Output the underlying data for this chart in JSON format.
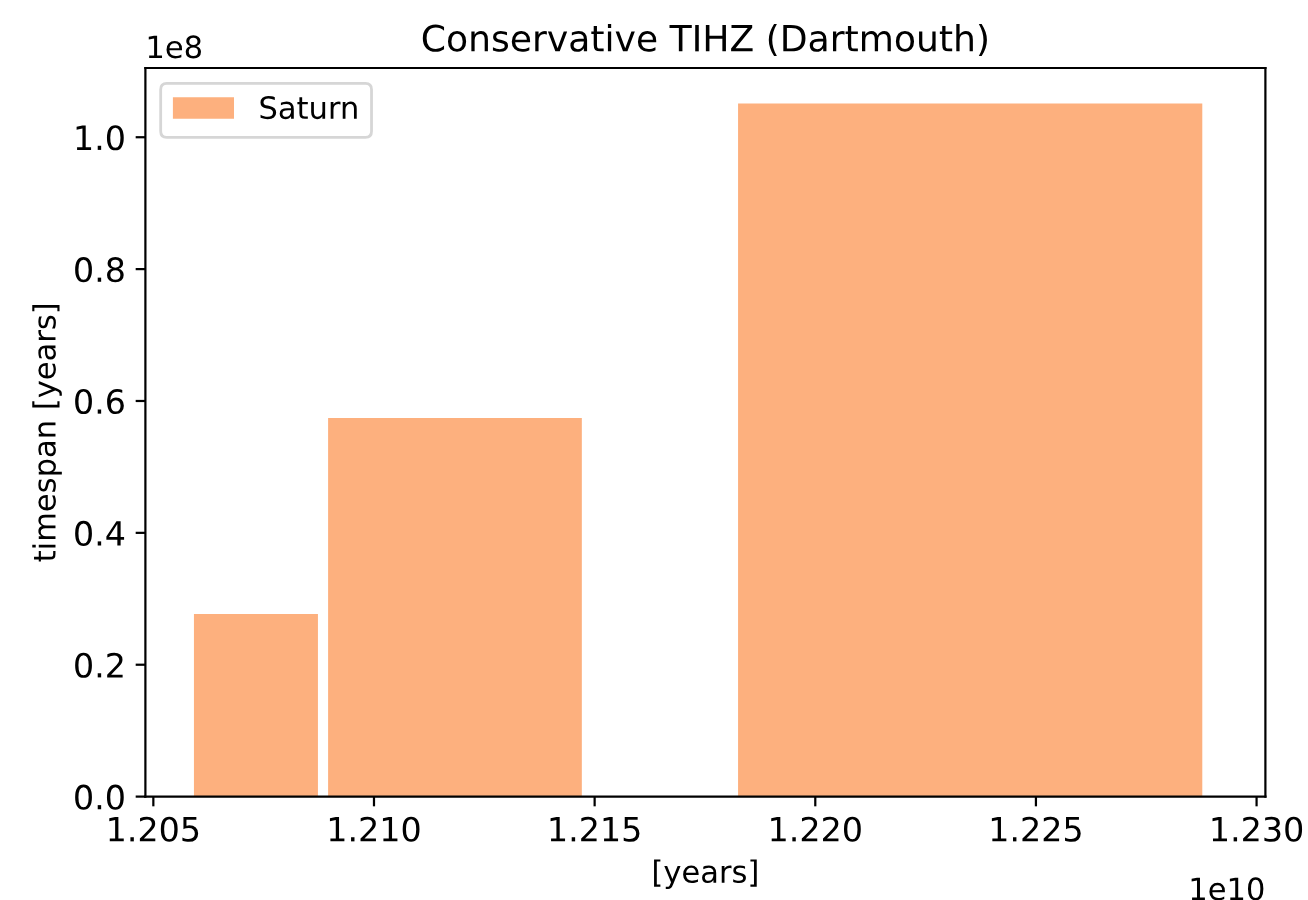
{
  "chart_data": {
    "type": "histogram",
    "title": "Conservative TIHZ (Dartmouth)",
    "xlabel": "[years]",
    "ylabel": "timespan [years]",
    "bins": [
      1.20592,
      1.20873,
      1.20896,
      1.21471,
      1.21825,
      1.22877
    ],
    "series": [
      {
        "name": "Saturn",
        "color": "#fdb07e",
        "values": [
          0.277,
          0,
          0.574,
          0,
          1.051
        ]
      }
    ],
    "xlim": [
      1.20482,
      1.2302
    ],
    "xticks": [
      1.205,
      {
        "value": 1.21,
        "label": "1.210"
      },
      1.215,
      {
        "value": 1.22,
        "label": "1.220"
      },
      1.225,
      {
        "value": 1.23,
        "label": "1.230"
      }
    ],
    "ylim": [
      0,
      1.105
    ],
    "yticks": [
      {
        "value": 0,
        "label": "0.0"
      },
      0.2,
      0.4,
      0.6,
      0.8,
      {
        "value": 1,
        "label": "1.0"
      }
    ],
    "annotations": [
      "1e10",
      "1e8"
    ],
    "legend": "top left",
    "grid": false
  }
}
